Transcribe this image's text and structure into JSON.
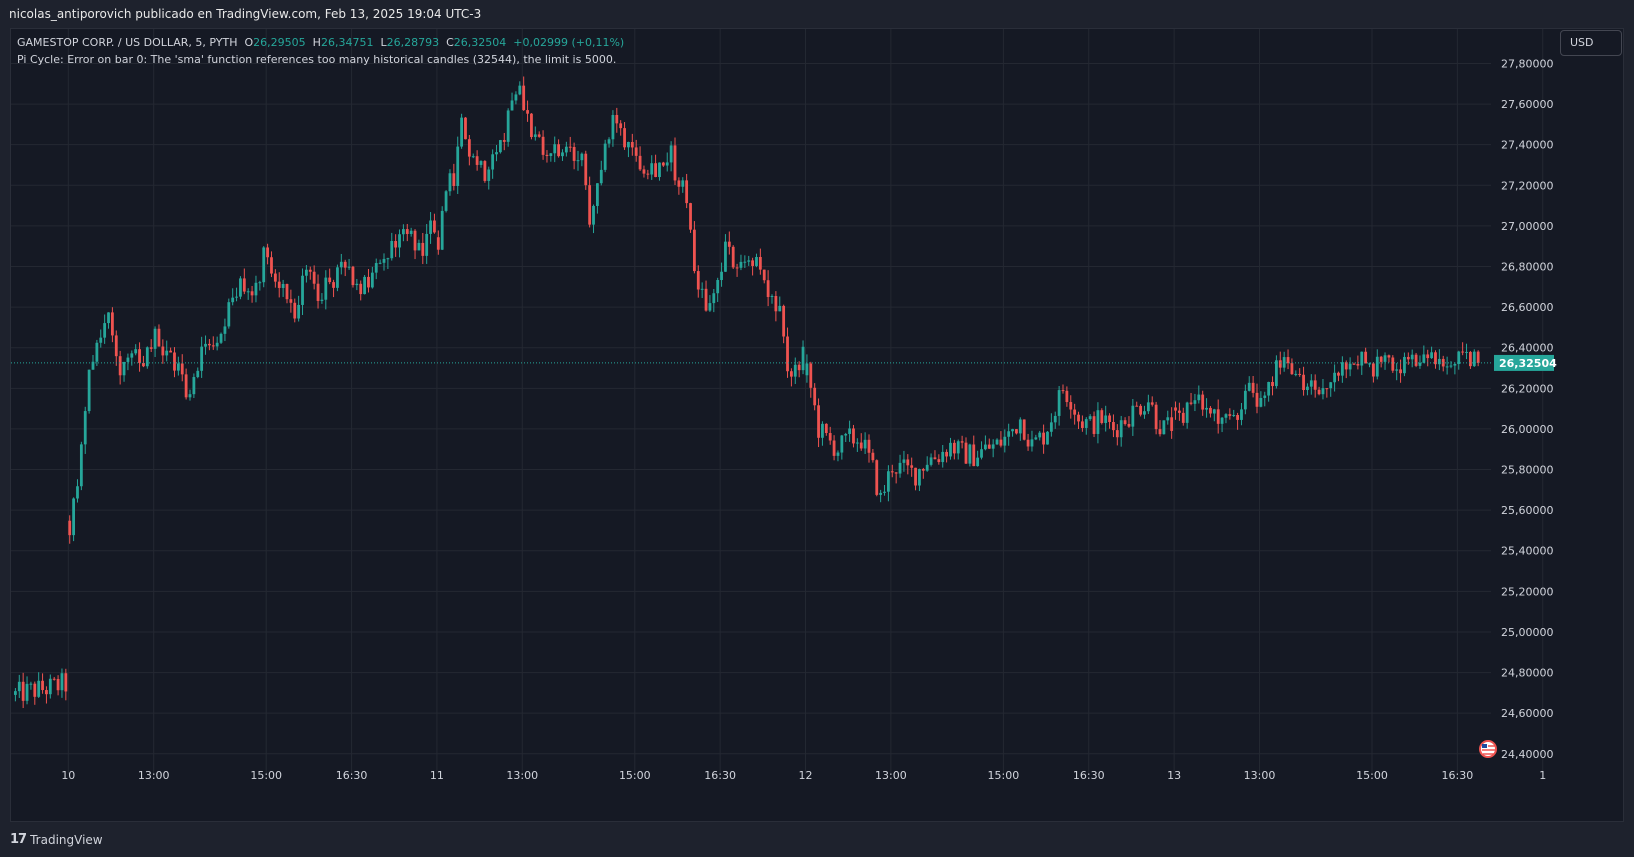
{
  "header": {
    "publisher_text": "nicolas_antiporovich publicado en TradingView.com, Feb 13, 2025 19:04 UTC-3"
  },
  "legend": {
    "symbol_line": "GAMESTOP CORP. / US DOLLAR, 5, PYTH",
    "o_label": "O",
    "o_value": "26,29505",
    "h_label": "H",
    "h_value": "26,34751",
    "l_label": "L",
    "l_value": "26,28793",
    "c_label": "C",
    "c_value": "26,32504",
    "change": "+0,02999 (+0,11%)",
    "error_line": "Pi Cycle: Error on bar 0: The 'sma' function references too many historical candles (32544), the limit is 5000."
  },
  "currency_button": {
    "label": "USD"
  },
  "footer": {
    "logo_glyph": "17",
    "brand": "TradingView"
  },
  "colors": {
    "up": "#26a69a",
    "down": "#ef5350",
    "bg": "#151924",
    "grid": "#242832",
    "text": "#d1d4dc"
  },
  "chart_data": {
    "type": "candlestick",
    "ylim": [
      24.33,
      27.95
    ],
    "last_price": 26.32504,
    "last_price_label": "26,32504",
    "y_ticks": [
      "27,80000",
      "27,60000",
      "27,40000",
      "27,20000",
      "27,00000",
      "26,80000",
      "26,60000",
      "26,40000",
      "26,20000",
      "26,00000",
      "25,80000",
      "25,60000",
      "25,40000",
      "25,20000",
      "25,00000",
      "24,80000",
      "24,60000",
      "24,40000"
    ],
    "y_tick_values": [
      27.8,
      27.6,
      27.4,
      27.2,
      27.0,
      26.8,
      26.6,
      26.4,
      26.2,
      26.0,
      25.8,
      25.6,
      25.4,
      25.2,
      25.0,
      24.8,
      24.6,
      24.4
    ],
    "x_ticks": [
      {
        "label": "10",
        "bar": 14
      },
      {
        "label": "13:00",
        "bar": 36
      },
      {
        "label": "15:00",
        "bar": 65
      },
      {
        "label": "16:30",
        "bar": 87
      },
      {
        "label": "11",
        "bar": 109
      },
      {
        "label": "13:00",
        "bar": 131
      },
      {
        "label": "15:00",
        "bar": 160
      },
      {
        "label": "16:30",
        "bar": 182
      },
      {
        "label": "12",
        "bar": 204
      },
      {
        "label": "13:00",
        "bar": 226
      },
      {
        "label": "15:00",
        "bar": 255
      },
      {
        "label": "16:30",
        "bar": 277
      },
      {
        "label": "13",
        "bar": 299
      },
      {
        "label": "13:00",
        "bar": 321
      },
      {
        "label": "15:00",
        "bar": 350
      },
      {
        "label": "16:30",
        "bar": 372
      },
      {
        "label": "1",
        "bar": 394
      }
    ],
    "anchors": [
      [
        0,
        24.69
      ],
      [
        4,
        24.71
      ],
      [
        8,
        24.72
      ],
      [
        12,
        24.74
      ],
      [
        13,
        24.74
      ],
      [
        14,
        25.5
      ],
      [
        17,
        25.9
      ],
      [
        19,
        26.3
      ],
      [
        21,
        26.45
      ],
      [
        24,
        26.55
      ],
      [
        27,
        26.3
      ],
      [
        30,
        26.35
      ],
      [
        33,
        26.3
      ],
      [
        36,
        26.45
      ],
      [
        39,
        26.35
      ],
      [
        42,
        26.3
      ],
      [
        45,
        26.15
      ],
      [
        48,
        26.4
      ],
      [
        51,
        26.45
      ],
      [
        54,
        26.55
      ],
      [
        57,
        26.7
      ],
      [
        60,
        26.65
      ],
      [
        63,
        26.75
      ],
      [
        64,
        26.95
      ],
      [
        66,
        26.75
      ],
      [
        69,
        26.7
      ],
      [
        72,
        26.6
      ],
      [
        75,
        26.75
      ],
      [
        78,
        26.68
      ],
      [
        81,
        26.72
      ],
      [
        84,
        26.78
      ],
      [
        87,
        26.75
      ],
      [
        90,
        26.7
      ],
      [
        93,
        26.78
      ],
      [
        96,
        26.85
      ],
      [
        99,
        26.97
      ],
      [
        102,
        26.95
      ],
      [
        105,
        26.9
      ],
      [
        107,
        27.0
      ],
      [
        109,
        26.9
      ],
      [
        111,
        27.15
      ],
      [
        113,
        27.25
      ],
      [
        115,
        27.5
      ],
      [
        117,
        27.3
      ],
      [
        119,
        27.35
      ],
      [
        121,
        27.25
      ],
      [
        123,
        27.4
      ],
      [
        126,
        27.45
      ],
      [
        128,
        27.65
      ],
      [
        130,
        27.7
      ],
      [
        132,
        27.55
      ],
      [
        134,
        27.4
      ],
      [
        137,
        27.35
      ],
      [
        140,
        27.36
      ],
      [
        143,
        27.35
      ],
      [
        146,
        27.3
      ],
      [
        148,
        27.05
      ],
      [
        150,
        27.25
      ],
      [
        152,
        27.35
      ],
      [
        154,
        27.52
      ],
      [
        156,
        27.45
      ],
      [
        158,
        27.42
      ],
      [
        160,
        27.35
      ],
      [
        163,
        27.3
      ],
      [
        166,
        27.3
      ],
      [
        169,
        27.35
      ],
      [
        171,
        27.2
      ],
      [
        173,
        27.15
      ],
      [
        175,
        26.8
      ],
      [
        177,
        26.65
      ],
      [
        179,
        26.6
      ],
      [
        181,
        26.72
      ],
      [
        183,
        26.88
      ],
      [
        185,
        26.82
      ],
      [
        188,
        26.85
      ],
      [
        191,
        26.82
      ],
      [
        194,
        26.65
      ],
      [
        197,
        26.55
      ],
      [
        199,
        26.25
      ],
      [
        201,
        26.3
      ],
      [
        203,
        26.35
      ],
      [
        205,
        26.2
      ],
      [
        207,
        26.0
      ],
      [
        209,
        25.95
      ],
      [
        212,
        25.9
      ],
      [
        215,
        25.95
      ],
      [
        218,
        25.95
      ],
      [
        221,
        25.8
      ],
      [
        223,
        25.65
      ],
      [
        226,
        25.82
      ],
      [
        229,
        25.8
      ],
      [
        232,
        25.78
      ],
      [
        235,
        25.85
      ],
      [
        238,
        25.87
      ],
      [
        241,
        25.92
      ],
      [
        244,
        25.88
      ],
      [
        247,
        25.87
      ],
      [
        250,
        25.9
      ],
      [
        253,
        25.92
      ],
      [
        256,
        25.97
      ],
      [
        259,
        26.05
      ],
      [
        262,
        25.92
      ],
      [
        265,
        25.97
      ],
      [
        268,
        26.1
      ],
      [
        270,
        26.2
      ],
      [
        272,
        26.15
      ],
      [
        274,
        26.05
      ],
      [
        277,
        26.02
      ],
      [
        280,
        26.05
      ],
      [
        283,
        26.0
      ],
      [
        286,
        26.05
      ],
      [
        289,
        26.1
      ],
      [
        292,
        26.15
      ],
      [
        294,
        26.05
      ],
      [
        296,
        26.0
      ],
      [
        298,
        26.02
      ],
      [
        300,
        26.05
      ],
      [
        303,
        26.15
      ],
      [
        306,
        26.1
      ],
      [
        309,
        26.08
      ],
      [
        312,
        26.02
      ],
      [
        315,
        26.1
      ],
      [
        318,
        26.2
      ],
      [
        320,
        26.12
      ],
      [
        322,
        26.2
      ],
      [
        324,
        26.27
      ],
      [
        327,
        26.35
      ],
      [
        330,
        26.22
      ],
      [
        333,
        26.2
      ],
      [
        336,
        26.2
      ],
      [
        339,
        26.25
      ],
      [
        342,
        26.28
      ],
      [
        345,
        26.35
      ],
      [
        348,
        26.33
      ],
      [
        351,
        26.3
      ],
      [
        354,
        26.33
      ],
      [
        357,
        26.3
      ],
      [
        360,
        26.32
      ],
      [
        363,
        26.34
      ],
      [
        366,
        26.33
      ],
      [
        369,
        26.32
      ],
      [
        372,
        26.33
      ],
      [
        375,
        26.33
      ],
      [
        377,
        26.32
      ]
    ]
  }
}
